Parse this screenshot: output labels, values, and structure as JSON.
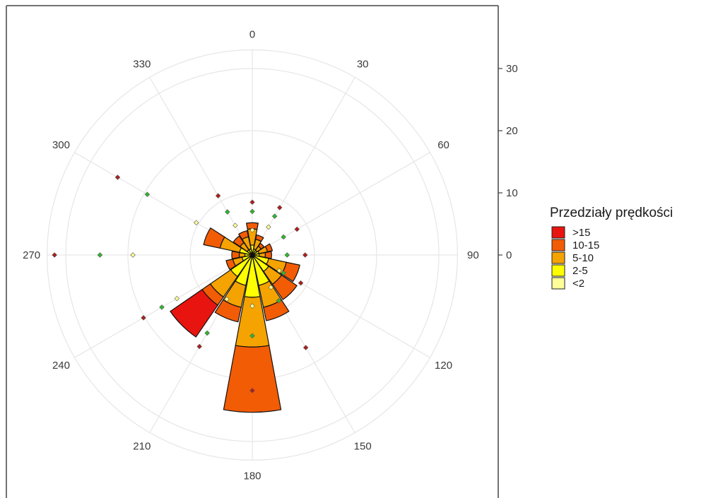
{
  "chart_data": {
    "type": "wind-rose",
    "legend": {
      "title": "Przedziały prędkości",
      "items": [
        {
          "label": ">15",
          "color": "#e8140f"
        },
        {
          "label": "10-15",
          "color": "#f25c05"
        },
        {
          "label": "5-10",
          "color": "#f5a300"
        },
        {
          "label": "2-5",
          "color": "#ffff00"
        },
        {
          "label": "<2",
          "color": "#ffff99"
        }
      ]
    },
    "angle_ticks": [
      "0",
      "30",
      "60",
      "90",
      "120",
      "150",
      "180",
      "210",
      "240",
      "270",
      "300",
      "330"
    ],
    "radial_ticks": [
      "0",
      "10",
      "20",
      "30"
    ],
    "radial_range": [
      0,
      33
    ],
    "grid": true,
    "sectors": [
      {
        "direction": 0,
        "bands": [
          0.3,
          1.3,
          2.6,
          1.0,
          0
        ]
      },
      {
        "direction": 22.5,
        "bands": [
          0.3,
          0.7,
          1.6,
          0.7,
          0
        ]
      },
      {
        "direction": 45,
        "bands": [
          0.2,
          0.7,
          0.8,
          0.6,
          0
        ]
      },
      {
        "direction": 67.5,
        "bands": [
          0.2,
          0.9,
          1.4,
          0.8,
          0
        ]
      },
      {
        "direction": 90,
        "bands": [
          0.2,
          0.9,
          1.0,
          1.0,
          0
        ]
      },
      {
        "direction": 112.5,
        "bands": [
          0.3,
          2.4,
          2.9,
          2.2,
          0
        ]
      },
      {
        "direction": 135,
        "bands": [
          0.4,
          2.8,
          2.5,
          3.0,
          0
        ]
      },
      {
        "direction": 157.5,
        "bands": [
          0.4,
          4.6,
          3.6,
          2.2,
          0
        ]
      },
      {
        "direction": 180,
        "bands": [
          0.4,
          6.4,
          8.0,
          10.5,
          0
        ]
      },
      {
        "direction": 202.5,
        "bands": [
          0.4,
          4.6,
          3.6,
          2.4,
          0
        ]
      },
      {
        "direction": 225,
        "bands": [
          0.4,
          3.8,
          4.0,
          1.6,
          6.2
        ]
      },
      {
        "direction": 247.5,
        "bands": [
          0.3,
          1.4,
          1.5,
          1.1,
          0
        ]
      },
      {
        "direction": 270,
        "bands": [
          0.2,
          1.0,
          0.9,
          1.2,
          0
        ]
      },
      {
        "direction": 292.5,
        "bands": [
          0.3,
          1.8,
          3.2,
          2.7,
          0
        ]
      },
      {
        "direction": 315,
        "bands": [
          0.2,
          0.8,
          1.4,
          1.3,
          0
        ]
      },
      {
        "direction": 337.5,
        "bands": [
          0.2,
          0.8,
          2.0,
          1.0,
          0
        ]
      }
    ],
    "points": [
      {
        "angle": 0,
        "r": 4,
        "color": "#ffff99"
      },
      {
        "angle": 0,
        "r": 7,
        "color": "#2db82d"
      },
      {
        "angle": 0,
        "r": 8.5,
        "color": "#b01c1c"
      },
      {
        "angle": 30,
        "r": 5.2,
        "color": "#ffff99"
      },
      {
        "angle": 30,
        "r": 7.2,
        "color": "#2db82d"
      },
      {
        "angle": 30,
        "r": 8.8,
        "color": "#b01c1c"
      },
      {
        "angle": 60,
        "r": 5.8,
        "color": "#2db82d"
      },
      {
        "angle": 60,
        "r": 8.3,
        "color": "#b01c1c"
      },
      {
        "angle": 90,
        "r": 5.6,
        "color": "#2db82d"
      },
      {
        "angle": 90,
        "r": 8.5,
        "color": "#b01c1c"
      },
      {
        "angle": 120,
        "r": 5.0,
        "color": "#ffff99"
      },
      {
        "angle": 120,
        "r": 5.8,
        "color": "#2db82d"
      },
      {
        "angle": 120,
        "r": 9.0,
        "color": "#b01c1c"
      },
      {
        "angle": 150,
        "r": 6.0,
        "color": "#ffff99"
      },
      {
        "angle": 150,
        "r": 8.5,
        "color": "#2db82d"
      },
      {
        "angle": 150,
        "r": 17.2,
        "color": "#b01c1c"
      },
      {
        "angle": 180,
        "r": 8.2,
        "color": "#ffff99"
      },
      {
        "angle": 180,
        "r": 13.0,
        "color": "#2db82d"
      },
      {
        "angle": 180,
        "r": 21.8,
        "color": "#b01c1c"
      },
      {
        "angle": 210,
        "r": 8.2,
        "color": "#ffff99"
      },
      {
        "angle": 210,
        "r": 14.5,
        "color": "#2db82d"
      },
      {
        "angle": 210,
        "r": 17.0,
        "color": "#b01c1c"
      },
      {
        "angle": 240,
        "r": 14.0,
        "color": "#ffff99"
      },
      {
        "angle": 240,
        "r": 16.8,
        "color": "#2db82d"
      },
      {
        "angle": 240,
        "r": 20.2,
        "color": "#b01c1c"
      },
      {
        "angle": 270,
        "r": 19.2,
        "color": "#ffff99"
      },
      {
        "angle": 270,
        "r": 24.5,
        "color": "#2db82d"
      },
      {
        "angle": 270,
        "r": 31.8,
        "color": "#b01c1c"
      },
      {
        "angle": 300,
        "r": 10.4,
        "color": "#ffff99"
      },
      {
        "angle": 300,
        "r": 19.5,
        "color": "#2db82d"
      },
      {
        "angle": 300,
        "r": 25.0,
        "color": "#b01c1c"
      },
      {
        "angle": 330,
        "r": 5.5,
        "color": "#ffff99"
      },
      {
        "angle": 330,
        "r": 8.0,
        "color": "#2db82d"
      },
      {
        "angle": 330,
        "r": 11.0,
        "color": "#b01c1c"
      }
    ]
  }
}
